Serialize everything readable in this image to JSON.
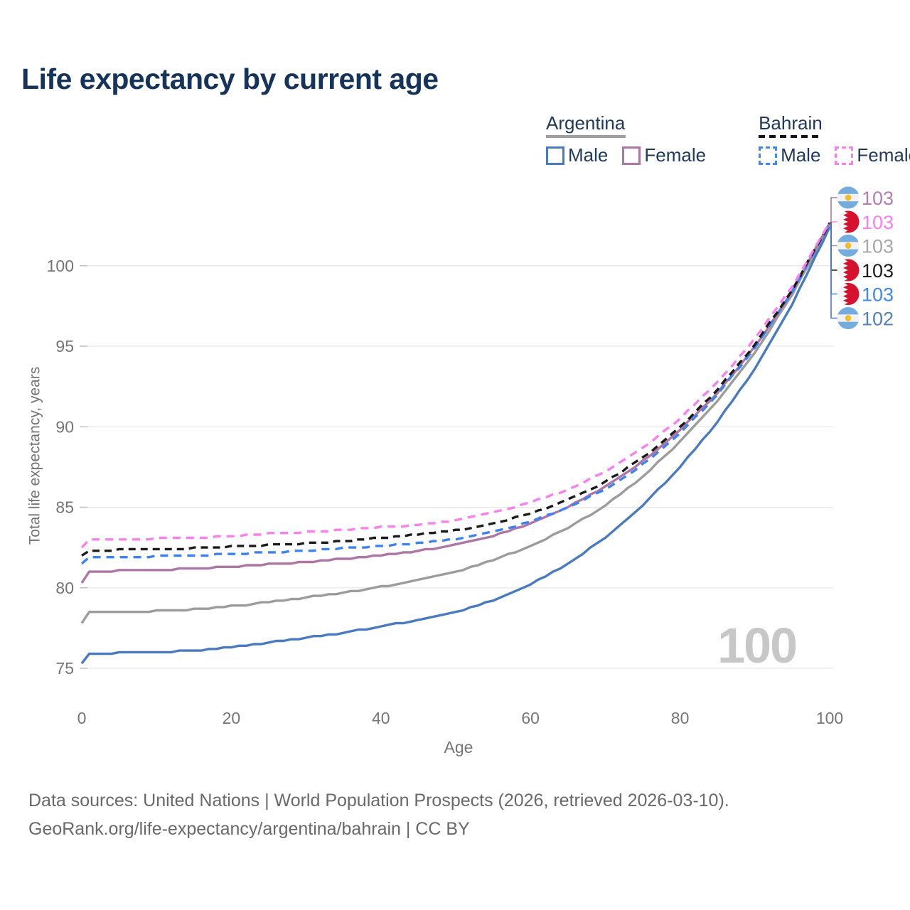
{
  "title": "Life expectancy by current age",
  "watermark": "100",
  "legend": {
    "groups": [
      {
        "label": "Argentina",
        "line_style": "solid",
        "underline_color": "#9e9e9e",
        "items": [
          {
            "label": "Male",
            "color": "#4a7abf",
            "dashed": false
          },
          {
            "label": "Female",
            "color": "#ac76a5",
            "dashed": false
          }
        ]
      },
      {
        "label": "Bahrain",
        "line_style": "dashed",
        "underline_color": "#141414",
        "items": [
          {
            "label": "Male",
            "color": "#4285f4",
            "dashed": true
          },
          {
            "label": "Female",
            "color": "#fb80ef",
            "dashed": true
          }
        ]
      }
    ]
  },
  "chart_data": {
    "type": "line",
    "title": "Life expectancy by current age",
    "xlabel": "Age",
    "ylabel": "Total life expectancy, years",
    "xlim": [
      0,
      100
    ],
    "ylim": [
      75,
      103
    ],
    "x_ticks": [
      0,
      20,
      40,
      60,
      80,
      100
    ],
    "y_ticks": [
      75,
      80,
      85,
      90,
      95,
      100
    ],
    "grid": "horizontal-only",
    "legend_position": "top-right",
    "age_anchors": [
      0,
      1,
      5,
      10,
      15,
      20,
      25,
      30,
      35,
      40,
      45,
      50,
      55,
      60,
      65,
      70,
      75,
      80,
      85,
      90,
      95,
      100
    ],
    "series": [
      {
        "name": "Argentina Female",
        "country": "Argentina",
        "sex": "Female",
        "color": "#ac76a5",
        "dashed": false,
        "row": 0,
        "end_label": "103",
        "end_label_color": "#b07fad",
        "values": [
          80.3,
          81.0,
          81.05,
          81.1,
          81.2,
          81.3,
          81.45,
          81.6,
          81.8,
          82.0,
          82.3,
          82.65,
          83.2,
          84.0,
          85.0,
          86.25,
          87.85,
          89.8,
          92.1,
          94.95,
          98.4,
          102.65
        ]
      },
      {
        "name": "Bahrain Female",
        "country": "Bahrain",
        "sex": "Female",
        "color": "#fb80ef",
        "dashed": true,
        "row": 1,
        "end_label": "103",
        "end_label_color": "#fb80ef",
        "values": [
          82.5,
          82.95,
          83.0,
          83.05,
          83.1,
          83.2,
          83.35,
          83.45,
          83.6,
          83.75,
          83.9,
          84.15,
          84.65,
          85.3,
          86.1,
          87.2,
          88.65,
          90.5,
          92.75,
          95.45,
          98.7,
          102.7
        ]
      },
      {
        "name": "Argentina Both sexes",
        "country": "Argentina",
        "sex": "Both",
        "color": "#9c9c9c",
        "dashed": false,
        "row": 2,
        "end_label": "103",
        "end_label_color": "#a8a8a8",
        "values": [
          77.8,
          78.45,
          78.5,
          78.55,
          78.65,
          78.85,
          79.1,
          79.4,
          79.7,
          80.05,
          80.5,
          81.0,
          81.7,
          82.6,
          83.7,
          85.1,
          86.9,
          89.05,
          91.6,
          94.6,
          98.2,
          102.55
        ]
      },
      {
        "name": "Bahrain Both sexes",
        "country": "Bahrain",
        "sex": "Both",
        "color": "#1b1b1b",
        "dashed": true,
        "row": 3,
        "end_label": "103",
        "end_label_color": "#1b1b1b",
        "values": [
          82.0,
          82.3,
          82.35,
          82.4,
          82.45,
          82.55,
          82.65,
          82.75,
          82.9,
          83.1,
          83.3,
          83.55,
          84.0,
          84.6,
          85.45,
          86.55,
          88.05,
          89.95,
          92.3,
          95.1,
          98.5,
          102.65
        ]
      },
      {
        "name": "Bahrain Male",
        "country": "Bahrain",
        "sex": "Male",
        "color": "#3d82f2",
        "dashed": true,
        "row": 4,
        "end_label": "103",
        "end_label_color": "#4285f4",
        "values": [
          81.5,
          81.85,
          81.9,
          81.95,
          82.0,
          82.1,
          82.2,
          82.3,
          82.45,
          82.6,
          82.75,
          83.0,
          83.45,
          84.1,
          85.0,
          86.1,
          87.65,
          89.6,
          92.0,
          94.9,
          98.4,
          102.6
        ]
      },
      {
        "name": "Argentina Male",
        "country": "Argentina",
        "sex": "Male",
        "color": "#4a7abf",
        "dashed": false,
        "row": 5,
        "end_label": "102",
        "end_label_color": "#5480bd",
        "values": [
          75.3,
          75.9,
          75.95,
          76.0,
          76.1,
          76.3,
          76.6,
          76.9,
          77.2,
          77.6,
          78.0,
          78.5,
          79.2,
          80.2,
          81.5,
          83.1,
          85.1,
          87.5,
          90.3,
          93.6,
          97.6,
          102.4
        ]
      }
    ]
  },
  "colors": {
    "title": "#16335b",
    "legend_text": "#20395c",
    "axis_text": "#757575",
    "grid": "#e8e8e8",
    "tick": "#c4c4c4",
    "footer_text": "#696969",
    "watermark": "#c7c7c7",
    "argentina_flag_blue": "#74acdf",
    "argentina_flag_white": "#f2f2f2",
    "argentina_flag_sun": "#eebc2c",
    "bahrain_flag_red": "#d6112e",
    "bahrain_flag_white": "#f5f5f5"
  },
  "footer": {
    "line1": "Data sources: United Nations | World Population Prospects (2026, retrieved 2026-03-10).",
    "line2": "GeoRank.org/life-expectancy/argentina/bahrain | CC BY"
  }
}
